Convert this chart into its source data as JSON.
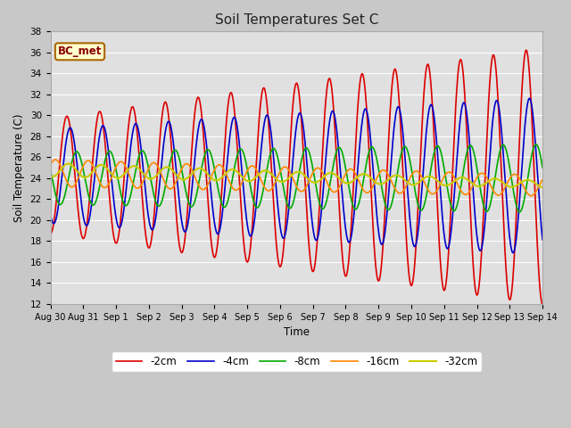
{
  "title": "Soil Temperatures Set C",
  "xlabel": "Time",
  "ylabel": "Soil Temperature (C)",
  "ylim": [
    12,
    38
  ],
  "yticks": [
    12,
    14,
    16,
    18,
    20,
    22,
    24,
    26,
    28,
    30,
    32,
    34,
    36,
    38
  ],
  "fig_facecolor": "#c8c8c8",
  "plot_bg": "#e0e0e0",
  "annotation_text": "BC_met",
  "annotation_bg": "#ffffcc",
  "annotation_border": "#aa6600",
  "annotation_text_color": "#880000",
  "legend_entries": [
    "-2cm",
    "-4cm",
    "-8cm",
    "-16cm",
    "-32cm"
  ],
  "line_colors": [
    "#dd0000",
    "#0000cc",
    "#00aa00",
    "#ff8800",
    "#cccc00"
  ],
  "line_widths": [
    1.2,
    1.2,
    1.2,
    1.2,
    1.5
  ],
  "xtick_labels": [
    "Aug 30",
    "Aug 31",
    "Sep 1",
    "Sep 2",
    "Sep 3",
    "Sep 4",
    "Sep 5",
    "Sep 6",
    "Sep 7",
    "Sep 8",
    "Sep 9",
    "Sep 10",
    "Sep 11",
    "Sep 12",
    "Sep 13",
    "Sep 14"
  ],
  "xtick_positions": [
    0,
    1,
    2,
    3,
    4,
    5,
    6,
    7,
    8,
    9,
    10,
    11,
    12,
    13,
    14,
    15
  ]
}
